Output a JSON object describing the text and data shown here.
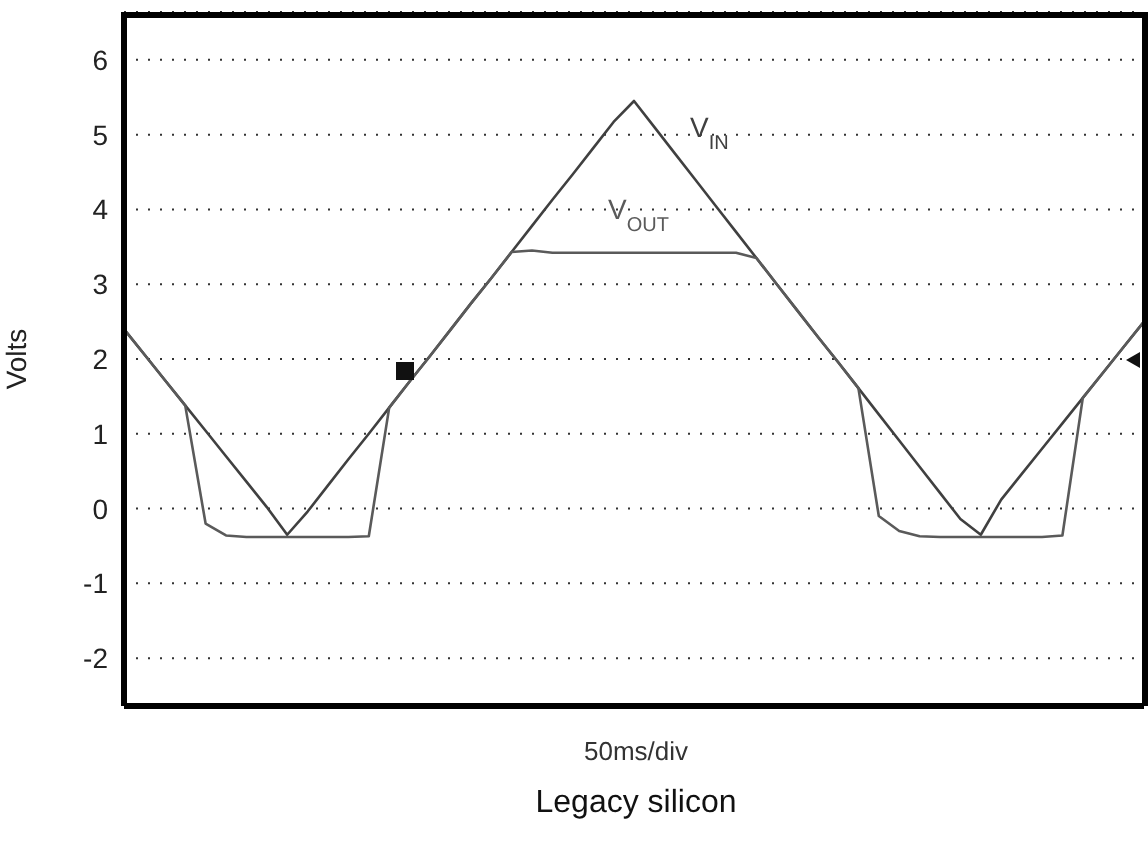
{
  "chart_data": {
    "type": "line",
    "title": "Legacy silicon",
    "xlabel": "50ms/div",
    "ylabel": "Volts",
    "categories": [
      null,
      null,
      null,
      null,
      null,
      null,
      null,
      null,
      null,
      null,
      null,
      null,
      null,
      null,
      null,
      null,
      null,
      null,
      null,
      null,
      null,
      null,
      null,
      null,
      null,
      null,
      null,
      null,
      null,
      null,
      null,
      null,
      null,
      null,
      null,
      null,
      null,
      null,
      null,
      null,
      null,
      null,
      null,
      null,
      null,
      null,
      null,
      null,
      null,
      null,
      null
    ],
    "ylim": [
      -2.64,
      6.64
    ],
    "yticks": [
      -2,
      -1,
      0,
      1,
      2,
      3,
      4,
      5,
      6
    ],
    "grid": true,
    "marker": "none",
    "line_style": "solid",
    "legend": false,
    "series": [
      {
        "name": "V$_{IN}$",
        "color": "#404040",
        "values": [
          2.4,
          2.06,
          1.72,
          1.38,
          1.04,
          0.7,
          0.36,
          0.02,
          -0.35,
          -0.04,
          0.31,
          0.66,
          1.0,
          1.35,
          1.7,
          2.04,
          2.39,
          2.74,
          3.08,
          3.43,
          3.78,
          4.13,
          4.47,
          4.82,
          5.17,
          5.45,
          5.1,
          4.75,
          4.4,
          4.05,
          3.7,
          3.35,
          3.0,
          2.65,
          2.3,
          1.96,
          1.61,
          1.26,
          0.91,
          0.56,
          0.21,
          -0.14,
          -0.35,
          0.12,
          0.46,
          0.8,
          1.14,
          1.48,
          1.82,
          2.16,
          2.5
        ]
      },
      {
        "name": "V$_{OUT}$",
        "color": "#5a5a5a",
        "values": [
          2.4,
          2.06,
          1.72,
          1.38,
          -0.2,
          -0.36,
          -0.38,
          -0.38,
          -0.38,
          -0.38,
          -0.38,
          -0.38,
          -0.37,
          1.35,
          1.7,
          2.04,
          2.39,
          2.74,
          3.08,
          3.43,
          3.45,
          3.42,
          3.42,
          3.42,
          3.42,
          3.42,
          3.42,
          3.42,
          3.42,
          3.42,
          3.42,
          3.35,
          3.0,
          2.65,
          2.3,
          1.96,
          1.61,
          -0.1,
          -0.3,
          -0.37,
          -0.38,
          -0.38,
          -0.38,
          -0.38,
          -0.38,
          -0.38,
          -0.36,
          1.48,
          1.82,
          2.16,
          2.5
        ]
      }
    ]
  }
}
